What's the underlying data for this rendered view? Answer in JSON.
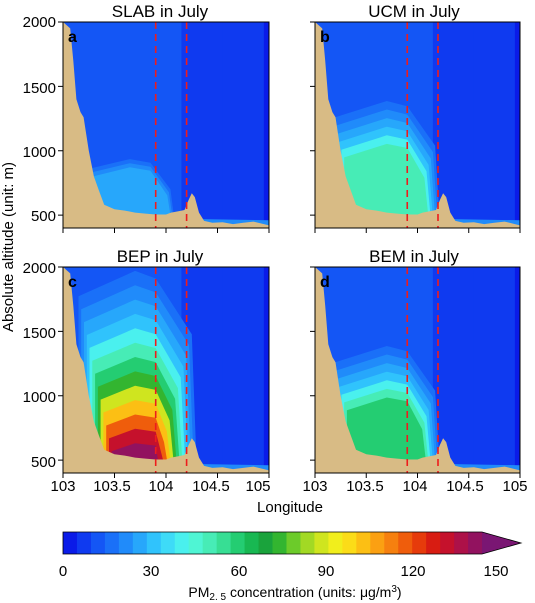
{
  "chart_data": [
    {
      "type": "heatmap",
      "panel": "a",
      "title": "SLAB in July",
      "plume": {
        "core_lon": 103.85,
        "intensity": 0.1,
        "near_surface_max": 30
      },
      "boundary_lines_lon": [
        103.9,
        104.2
      ]
    },
    {
      "type": "heatmap",
      "panel": "b",
      "title": "UCM in July",
      "plume": {
        "core_lon": 103.9,
        "intensity": 0.55,
        "near_surface_max": 60
      },
      "boundary_lines_lon": [
        103.9,
        104.2
      ]
    },
    {
      "type": "heatmap",
      "panel": "c",
      "title": "BEP in July",
      "plume": {
        "core_lon": 103.9,
        "intensity": 1.0,
        "near_surface_max": 150
      },
      "boundary_lines_lon": [
        103.9,
        104.2
      ]
    },
    {
      "type": "heatmap",
      "panel": "d",
      "title": "BEM in July",
      "plume": {
        "core_lon": 103.9,
        "intensity": 0.55,
        "near_surface_max": 65
      },
      "boundary_lines_lon": [
        103.9,
        104.2
      ]
    }
  ],
  "axes": {
    "xlabel": "Longitude",
    "ylabel": "Absolute altitude (unit: m)",
    "xlim": [
      103,
      105
    ],
    "ylim": [
      400,
      2000
    ],
    "xticks": [
      "103",
      "103.5",
      "104",
      "104.5",
      "105"
    ],
    "yticks": [
      "500",
      "1000",
      "1500",
      "2000"
    ]
  },
  "terrain": {
    "color": "#d8bb85",
    "profile": [
      [
        103.0,
        2000
      ],
      [
        103.07,
        1950
      ],
      [
        103.1,
        1700
      ],
      [
        103.13,
        1400
      ],
      [
        103.17,
        1300
      ],
      [
        103.2,
        1260
      ],
      [
        103.25,
        1000
      ],
      [
        103.3,
        800
      ],
      [
        103.35,
        690
      ],
      [
        103.4,
        580
      ],
      [
        103.5,
        545
      ],
      [
        103.6,
        535
      ],
      [
        103.7,
        520
      ],
      [
        103.8,
        512
      ],
      [
        103.9,
        505
      ],
      [
        104.0,
        505
      ],
      [
        104.05,
        520
      ],
      [
        104.12,
        530
      ],
      [
        104.18,
        540
      ],
      [
        104.22,
        620
      ],
      [
        104.25,
        670
      ],
      [
        104.28,
        640
      ],
      [
        104.32,
        520
      ],
      [
        104.37,
        455
      ],
      [
        104.45,
        440
      ],
      [
        104.55,
        445
      ],
      [
        104.65,
        430
      ],
      [
        104.75,
        440
      ],
      [
        104.85,
        450
      ],
      [
        104.95,
        430
      ],
      [
        105.0,
        420
      ]
    ]
  },
  "colorbar": {
    "label_prefix": "PM",
    "label_sub": "2. 5",
    "label_mid": " concentration (units: μg/m",
    "label_sup": "3",
    "label_end": ")",
    "ticks": [
      "0",
      "30",
      "60",
      "90",
      "120",
      "150"
    ],
    "range": [
      0,
      150
    ],
    "extend": "max",
    "colors": [
      "#0a1be8",
      "#0f3af0",
      "#1456f5",
      "#1a70f8",
      "#208bfa",
      "#27a7fb",
      "#30c3fc",
      "#3edbf7",
      "#4af0ee",
      "#4ff5d4",
      "#47ecb6",
      "#37de94",
      "#24cd72",
      "#18b852",
      "#1aa33c",
      "#33b530",
      "#6ccb2a",
      "#a2d924",
      "#cfe51f",
      "#f1ee1c",
      "#fbdc18",
      "#fcbf14",
      "#fba012",
      "#f6800f",
      "#ef5d0c",
      "#e63b0b",
      "#d81c12",
      "#c5112c",
      "#ad1148",
      "#92125f",
      "#7a1673"
    ]
  }
}
